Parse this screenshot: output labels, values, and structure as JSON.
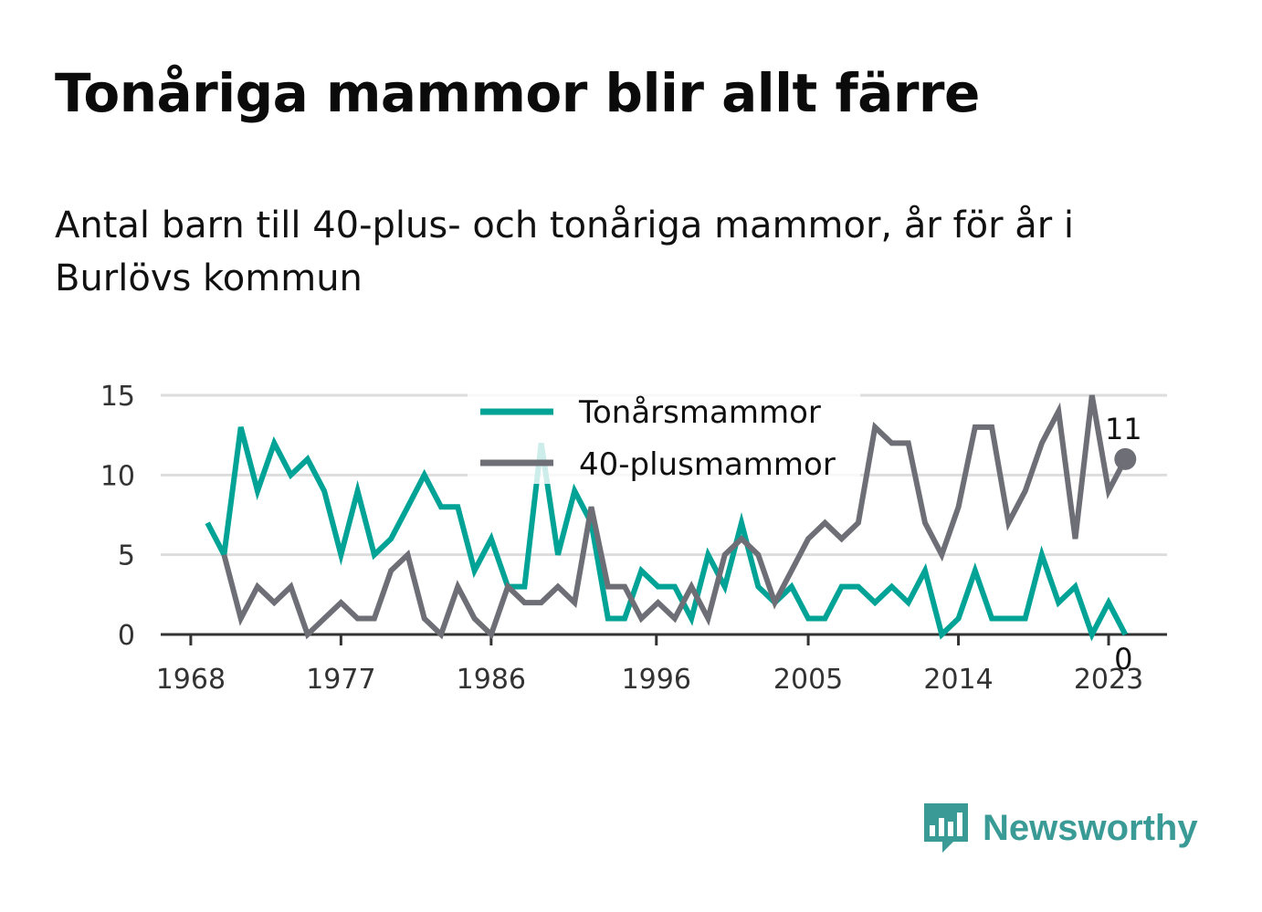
{
  "title": "Tonåriga mammor blir allt färre",
  "subtitle": "Antal barn till 40-plus- och tonåriga mammor, år för år i Burlövs kommun",
  "brand": {
    "name": "Newsworthy",
    "icon": "newsworthy-logo-icon",
    "color": "#3a9b96"
  },
  "chart_data": {
    "type": "line",
    "x_tick_labels": [
      "1968",
      "1977",
      "1986",
      "1996",
      "2005",
      "2014",
      "2023"
    ],
    "x_ticks": [
      1968,
      1977,
      1986,
      1995.9,
      2005,
      2014,
      2023
    ],
    "y_ticks": [
      0,
      5,
      10,
      15
    ],
    "xlim": [
      1966.2,
      2026.5
    ],
    "ylim": [
      0,
      15
    ],
    "grid": true,
    "legend_placement": "top-center",
    "x": [
      1969,
      1970,
      1971,
      1972,
      1973,
      1974,
      1975,
      1976,
      1977,
      1978,
      1979,
      1980,
      1981,
      1982,
      1983,
      1984,
      1985,
      1986,
      1987,
      1988,
      1989,
      1990,
      1991,
      1992,
      1993,
      1994,
      1995,
      1996,
      1997,
      1998,
      1999,
      2000,
      2001,
      2002,
      2003,
      2004,
      2005,
      2006,
      2007,
      2008,
      2009,
      2010,
      2011,
      2012,
      2013,
      2014,
      2015,
      2016,
      2017,
      2018,
      2019,
      2020,
      2021,
      2022,
      2023,
      2024
    ],
    "series": [
      {
        "name": "Tonårsmammor",
        "color": "#00a396",
        "values": [
          7,
          5,
          13,
          9,
          12,
          10,
          11,
          9,
          5,
          9,
          5,
          6,
          8,
          10,
          8,
          8,
          4,
          6,
          3,
          3,
          12,
          5,
          9,
          7,
          1,
          1,
          4,
          3,
          3,
          1,
          5,
          3,
          7,
          3,
          2,
          3,
          1,
          1,
          3,
          3,
          2,
          3,
          2,
          4,
          0,
          1,
          4,
          1,
          1,
          1,
          5,
          2,
          3,
          0,
          2,
          0
        ],
        "end_label": "0"
      },
      {
        "name": "40-plusmammor",
        "color": "#6e6e76",
        "values": [
          null,
          5,
          1,
          3,
          2,
          3,
          0,
          1,
          2,
          1,
          1,
          4,
          5,
          1,
          0,
          3,
          1,
          0,
          3,
          2,
          2,
          3,
          2,
          8,
          3,
          3,
          1,
          2,
          1,
          3,
          1,
          5,
          6,
          5,
          2,
          4,
          6,
          7,
          6,
          7,
          13,
          12,
          12,
          7,
          5,
          8,
          13,
          13,
          7,
          9,
          12,
          14,
          6,
          15,
          9,
          11
        ],
        "end_label": "11"
      }
    ]
  }
}
